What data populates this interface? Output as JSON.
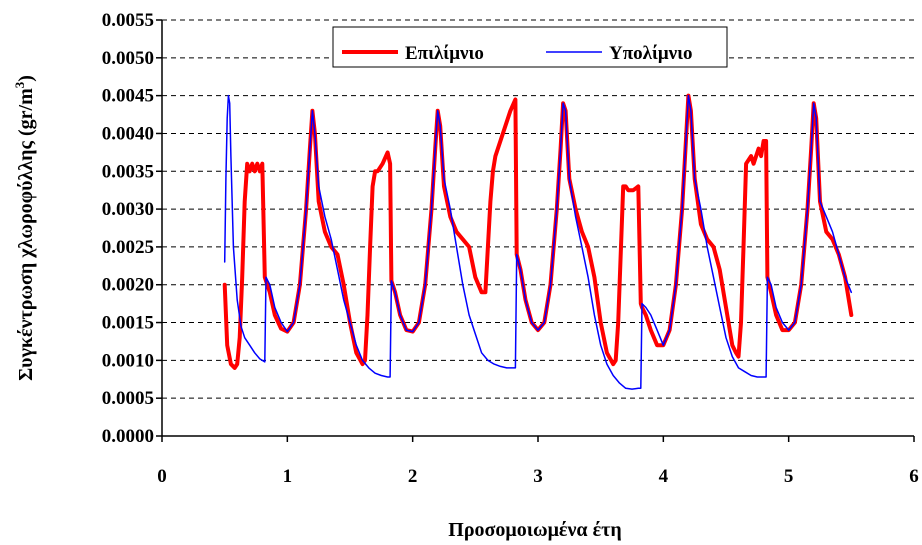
{
  "chart_data": {
    "type": "line",
    "xlabel": "Προσομοιωμένα έτη",
    "ylabel_main": "Συγκέντρωση χλωροφύλλης (gr/m",
    "ylabel_sup": "3",
    "ylabel_end": ")",
    "xlim": [
      0,
      6
    ],
    "ylim": [
      0,
      0.0055
    ],
    "xticks": [
      0,
      1,
      2,
      3,
      4,
      5,
      6
    ],
    "xtick_labels": [
      "0",
      "1",
      "2",
      "3",
      "4",
      "5",
      "6"
    ],
    "yticks": [
      0,
      0.0005,
      0.001,
      0.0015,
      0.002,
      0.0025,
      0.003,
      0.0035,
      0.004,
      0.0045,
      0.005,
      0.0055
    ],
    "ytick_labels": [
      "0.0000",
      "0.0005",
      "0.0010",
      "0.0015",
      "0.0020",
      "0.0025",
      "0.0030",
      "0.0035",
      "0.0040",
      "0.0045",
      "0.0050",
      "0.0055"
    ],
    "grid": "horizontal dashed",
    "legend_position": "top-center",
    "series": [
      {
        "name": "Επιλίμνιο",
        "color": "#ff0000",
        "x": [
          0.5,
          0.52,
          0.55,
          0.58,
          0.6,
          0.62,
          0.64,
          0.66,
          0.68,
          0.7,
          0.72,
          0.74,
          0.76,
          0.78,
          0.8,
          0.82,
          0.83,
          0.86,
          0.9,
          0.95,
          1.0,
          1.05,
          1.1,
          1.15,
          1.18,
          1.2,
          1.22,
          1.25,
          1.3,
          1.35,
          1.4,
          1.45,
          1.5,
          1.55,
          1.6,
          1.62,
          1.64,
          1.66,
          1.68,
          1.7,
          1.72,
          1.76,
          1.8,
          1.82,
          1.83,
          1.86,
          1.9,
          1.95,
          2.0,
          2.05,
          2.1,
          2.15,
          2.18,
          2.2,
          2.22,
          2.25,
          2.3,
          2.35,
          2.4,
          2.45,
          2.5,
          2.55,
          2.58,
          2.6,
          2.62,
          2.64,
          2.66,
          2.7,
          2.74,
          2.78,
          2.82,
          2.83,
          2.86,
          2.9,
          2.95,
          3.0,
          3.05,
          3.1,
          3.15,
          3.18,
          3.2,
          3.22,
          3.25,
          3.3,
          3.35,
          3.4,
          3.45,
          3.5,
          3.55,
          3.6,
          3.62,
          3.64,
          3.66,
          3.68,
          3.7,
          3.72,
          3.76,
          3.8,
          3.82,
          3.83,
          3.86,
          3.9,
          3.95,
          4.0,
          4.05,
          4.1,
          4.15,
          4.18,
          4.2,
          4.22,
          4.25,
          4.3,
          4.35,
          4.4,
          4.45,
          4.5,
          4.55,
          4.58,
          4.6,
          4.62,
          4.64,
          4.66,
          4.7,
          4.72,
          4.74,
          4.76,
          4.78,
          4.8,
          4.82,
          4.83,
          4.86,
          4.9,
          4.95,
          5.0,
          5.05,
          5.1,
          5.15,
          5.18,
          5.2,
          5.22,
          5.25,
          5.3,
          5.35,
          5.4,
          5.45,
          5.5
        ],
        "y": [
          0.002,
          0.0012,
          0.00095,
          0.0009,
          0.00095,
          0.0013,
          0.0021,
          0.0031,
          0.0036,
          0.0035,
          0.0036,
          0.0035,
          0.0036,
          0.0035,
          0.0036,
          0.0021,
          0.00205,
          0.0019,
          0.0016,
          0.00142,
          0.00138,
          0.0015,
          0.002,
          0.003,
          0.0038,
          0.0043,
          0.004,
          0.0031,
          0.0027,
          0.0025,
          0.0024,
          0.002,
          0.0015,
          0.0011,
          0.00095,
          0.001,
          0.0016,
          0.0025,
          0.0033,
          0.0035,
          0.0035,
          0.0036,
          0.00375,
          0.0036,
          0.00205,
          0.0019,
          0.0016,
          0.0014,
          0.00138,
          0.0015,
          0.002,
          0.003,
          0.0038,
          0.0043,
          0.0041,
          0.0033,
          0.0029,
          0.0027,
          0.0026,
          0.0025,
          0.0021,
          0.0019,
          0.0019,
          0.0025,
          0.0031,
          0.0035,
          0.0037,
          0.0039,
          0.0041,
          0.0043,
          0.00445,
          0.0024,
          0.0022,
          0.0018,
          0.0015,
          0.0014,
          0.0015,
          0.002,
          0.003,
          0.0038,
          0.0044,
          0.0043,
          0.0034,
          0.003,
          0.0027,
          0.0025,
          0.0021,
          0.0015,
          0.0011,
          0.00095,
          0.001,
          0.0015,
          0.0024,
          0.0033,
          0.0033,
          0.00325,
          0.00325,
          0.0033,
          0.00175,
          0.0017,
          0.0016,
          0.0014,
          0.0012,
          0.0012,
          0.0014,
          0.002,
          0.003,
          0.0039,
          0.0045,
          0.0043,
          0.0034,
          0.0028,
          0.0026,
          0.0025,
          0.0022,
          0.0017,
          0.0012,
          0.0011,
          0.00105,
          0.0015,
          0.0025,
          0.0036,
          0.0037,
          0.0036,
          0.0037,
          0.0038,
          0.0037,
          0.0039,
          0.0039,
          0.0021,
          0.0019,
          0.0016,
          0.0014,
          0.0014,
          0.0015,
          0.002,
          0.003,
          0.0038,
          0.0044,
          0.0042,
          0.0031,
          0.0027,
          0.0026,
          0.0024,
          0.0021,
          0.0016
        ]
      },
      {
        "name": "Υπολίμνιο",
        "color": "#0000ff",
        "x": [
          0.5,
          0.51,
          0.52,
          0.53,
          0.54,
          0.55,
          0.57,
          0.6,
          0.63,
          0.66,
          0.7,
          0.74,
          0.78,
          0.8,
          0.82,
          0.83,
          0.86,
          0.9,
          0.95,
          1.0,
          1.05,
          1.1,
          1.15,
          1.18,
          1.2,
          1.22,
          1.25,
          1.3,
          1.35,
          1.4,
          1.45,
          1.5,
          1.55,
          1.6,
          1.65,
          1.7,
          1.75,
          1.8,
          1.82,
          1.83,
          1.86,
          1.9,
          1.95,
          2.0,
          2.05,
          2.1,
          2.15,
          2.18,
          2.2,
          2.22,
          2.25,
          2.3,
          2.35,
          2.4,
          2.45,
          2.5,
          2.55,
          2.6,
          2.65,
          2.7,
          2.75,
          2.8,
          2.82,
          2.83,
          2.86,
          2.9,
          2.95,
          3.0,
          3.05,
          3.1,
          3.15,
          3.18,
          3.2,
          3.22,
          3.25,
          3.3,
          3.35,
          3.4,
          3.45,
          3.5,
          3.55,
          3.6,
          3.65,
          3.7,
          3.75,
          3.8,
          3.82,
          3.83,
          3.86,
          3.9,
          3.95,
          4.0,
          4.05,
          4.1,
          4.15,
          4.18,
          4.2,
          4.22,
          4.25,
          4.3,
          4.35,
          4.4,
          4.45,
          4.5,
          4.55,
          4.6,
          4.65,
          4.7,
          4.75,
          4.8,
          4.82,
          4.83,
          4.86,
          4.9,
          4.95,
          5.0,
          5.05,
          5.1,
          5.15,
          5.18,
          5.2,
          5.22,
          5.25,
          5.3,
          5.35,
          5.4,
          5.45,
          5.5
        ],
        "y": [
          0.0023,
          0.0034,
          0.0042,
          0.0045,
          0.0044,
          0.0037,
          0.0025,
          0.0018,
          0.00145,
          0.0013,
          0.0012,
          0.0011,
          0.00102,
          0.001,
          0.00098,
          0.0021,
          0.002,
          0.0017,
          0.0015,
          0.00138,
          0.0015,
          0.002,
          0.003,
          0.0038,
          0.0043,
          0.004,
          0.0033,
          0.0029,
          0.0026,
          0.0022,
          0.0018,
          0.0015,
          0.0012,
          0.001,
          0.0009,
          0.00083,
          0.0008,
          0.00078,
          0.00078,
          0.00205,
          0.0019,
          0.0016,
          0.0014,
          0.00138,
          0.0015,
          0.002,
          0.003,
          0.0038,
          0.0043,
          0.0041,
          0.0034,
          0.003,
          0.0025,
          0.002,
          0.0016,
          0.00135,
          0.0011,
          0.001,
          0.00095,
          0.00092,
          0.0009,
          0.0009,
          0.0009,
          0.0024,
          0.0022,
          0.0018,
          0.0015,
          0.0014,
          0.0015,
          0.002,
          0.003,
          0.0038,
          0.0044,
          0.0043,
          0.0034,
          0.0029,
          0.0025,
          0.0021,
          0.0016,
          0.0012,
          0.00095,
          0.0008,
          0.0007,
          0.00063,
          0.00062,
          0.00063,
          0.00063,
          0.00175,
          0.0017,
          0.0016,
          0.0014,
          0.0012,
          0.0014,
          0.002,
          0.003,
          0.0039,
          0.0045,
          0.0043,
          0.0034,
          0.003,
          0.0025,
          0.0021,
          0.0017,
          0.0013,
          0.00105,
          0.0009,
          0.00085,
          0.0008,
          0.00078,
          0.00078,
          0.00078,
          0.0021,
          0.002,
          0.0017,
          0.0015,
          0.0014,
          0.0015,
          0.002,
          0.003,
          0.0038,
          0.0044,
          0.0042,
          0.0031,
          0.0029,
          0.0027,
          0.0024,
          0.0021,
          0.0019
        ]
      }
    ]
  }
}
